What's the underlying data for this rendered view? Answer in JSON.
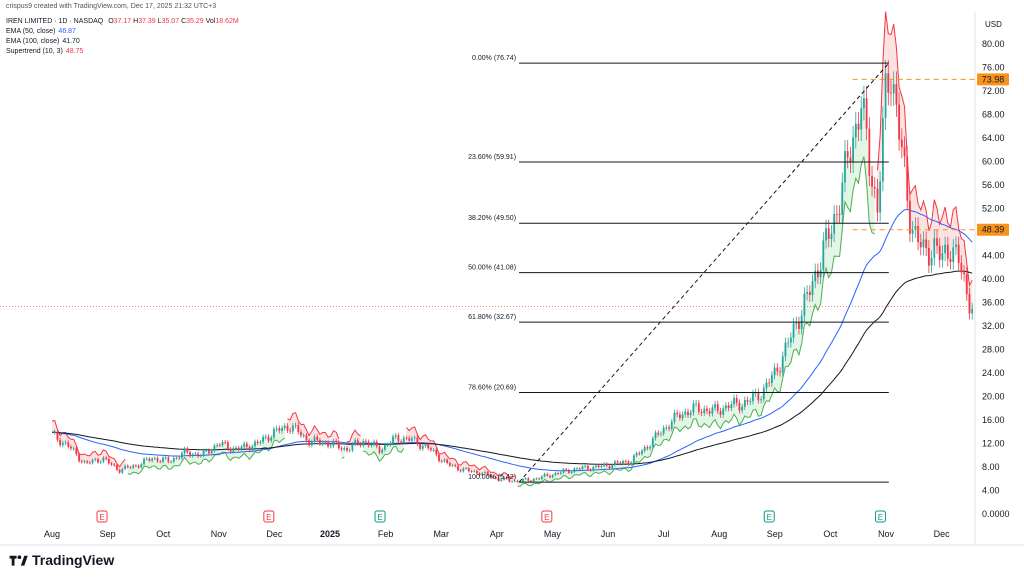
{
  "attribution": "crispus9 created with TradingView.com, Dec 17, 2025 21:32 UTC+3",
  "legend": {
    "symbol": "IREN LIMITED · 1D · NASDAQ",
    "ohlc": [
      {
        "k": "O",
        "v": "37.17"
      },
      {
        "k": "H",
        "v": "37.39"
      },
      {
        "k": "L",
        "v": "35.07"
      },
      {
        "k": "C",
        "v": "35.29"
      }
    ],
    "vol_label": "Vol",
    "vol_value": "18.62M",
    "ema50_label": "EMA (50, close)",
    "ema50_value": "46.87",
    "ema100_label": "EMA (100, close)",
    "ema100_value": "41.70",
    "supertrend_label": "Supertrend (10, 3)",
    "supertrend_value": "48.75"
  },
  "currency": "USD",
  "footer_brand": "TradingView",
  "colors": {
    "up": "#26a69a",
    "down": "#f23645",
    "ema50": "#2962ff",
    "ema100": "#131722",
    "supertrend_up_fill": "#e3f5e6",
    "supertrend_down_fill": "#fde2e2",
    "supertrend_up_line": "#4caf50",
    "supertrend_down_line": "#f23645",
    "price_marker": "#f7931a"
  },
  "chart_data": {
    "type": "candlestick",
    "symbol": "IREN LIMITED",
    "interval": "1D",
    "exchange": "NASDAQ",
    "y_axis_ticks": [
      "80.00",
      "76.00",
      "72.00",
      "68.00",
      "64.00",
      "60.00",
      "56.00",
      "52.00",
      "48.00",
      "44.00",
      "40.00",
      "36.00",
      "32.00",
      "28.00",
      "24.00",
      "20.00",
      "16.00",
      "12.00",
      "8.00",
      "4.00",
      "0.0000"
    ],
    "ylim": [
      0,
      80
    ],
    "x_axis_labels": [
      "Aug",
      "Sep",
      "Oct",
      "Nov",
      "Dec",
      "2025",
      "Feb",
      "Mar",
      "Apr",
      "May",
      "Jun",
      "Jul",
      "Aug",
      "Sep",
      "Oct",
      "Nov",
      "Dec"
    ],
    "earnings_markers": [
      {
        "label": "E",
        "month_index": 1,
        "kind": "red"
      },
      {
        "label": "E",
        "month_index": 4,
        "kind": "red"
      },
      {
        "label": "E",
        "month_index": 6,
        "kind": "green"
      },
      {
        "label": "E",
        "month_index": 9,
        "kind": "red"
      },
      {
        "label": "E",
        "month_index": 13,
        "kind": "green"
      },
      {
        "label": "E",
        "month_index": 15,
        "kind": "green"
      }
    ],
    "price_labels": [
      {
        "value": 73.98,
        "text": "73.98"
      },
      {
        "value": 48.39,
        "text": "48.39"
      }
    ],
    "last_close": 35.29,
    "fibonacci": [
      {
        "ratio": "0.00%",
        "price": 76.74,
        "text": "0.00% (76.74)"
      },
      {
        "ratio": "23.60%",
        "price": 59.91,
        "text": "23.60% (59.91)"
      },
      {
        "ratio": "38.20%",
        "price": 49.5,
        "text": "38.20% (49.50)"
      },
      {
        "ratio": "50.00%",
        "price": 41.08,
        "text": "50.00% (41.08)"
      },
      {
        "ratio": "61.80%",
        "price": 32.67,
        "text": "61.80% (32.67)"
      },
      {
        "ratio": "78.60%",
        "price": 20.69,
        "text": "78.60% (20.69)"
      },
      {
        "ratio": "100.00%",
        "price": 5.42,
        "text": "100.00% (5.42)"
      }
    ],
    "fib_anchor": {
      "low": 5.42,
      "low_month": "Apr",
      "high": 76.74,
      "high_month": "Nov"
    },
    "price_path": [
      {
        "m": 0.0,
        "p": 13.5
      },
      {
        "m": 0.3,
        "p": 11.5
      },
      {
        "m": 0.6,
        "p": 8.5
      },
      {
        "m": 0.9,
        "p": 9.5
      },
      {
        "m": 1.2,
        "p": 7.5
      },
      {
        "m": 1.5,
        "p": 8.2
      },
      {
        "m": 1.8,
        "p": 9.5
      },
      {
        "m": 2.1,
        "p": 9.0
      },
      {
        "m": 2.4,
        "p": 10.5
      },
      {
        "m": 2.7,
        "p": 10.0
      },
      {
        "m": 3.0,
        "p": 12.0
      },
      {
        "m": 3.3,
        "p": 11.0
      },
      {
        "m": 3.7,
        "p": 12.0
      },
      {
        "m": 4.0,
        "p": 14.0
      },
      {
        "m": 4.3,
        "p": 15.0
      },
      {
        "m": 4.6,
        "p": 12.5
      },
      {
        "m": 5.0,
        "p": 12.0
      },
      {
        "m": 5.3,
        "p": 11.0
      },
      {
        "m": 5.6,
        "p": 12.5
      },
      {
        "m": 5.9,
        "p": 11.0
      },
      {
        "m": 6.2,
        "p": 13.0
      },
      {
        "m": 6.5,
        "p": 12.5
      },
      {
        "m": 6.8,
        "p": 11.0
      },
      {
        "m": 7.1,
        "p": 8.5
      },
      {
        "m": 7.4,
        "p": 7.5
      },
      {
        "m": 7.7,
        "p": 7.0
      },
      {
        "m": 8.0,
        "p": 6.0
      },
      {
        "m": 8.3,
        "p": 5.6
      },
      {
        "m": 8.6,
        "p": 5.8
      },
      {
        "m": 8.9,
        "p": 6.5
      },
      {
        "m": 9.2,
        "p": 7.2
      },
      {
        "m": 9.5,
        "p": 7.8
      },
      {
        "m": 9.8,
        "p": 8.0
      },
      {
        "m": 10.1,
        "p": 8.5
      },
      {
        "m": 10.4,
        "p": 9.0
      },
      {
        "m": 10.7,
        "p": 11.5
      },
      {
        "m": 11.0,
        "p": 14.5
      },
      {
        "m": 11.3,
        "p": 17.0
      },
      {
        "m": 11.6,
        "p": 18.0
      },
      {
        "m": 11.9,
        "p": 17.5
      },
      {
        "m": 12.2,
        "p": 18.5
      },
      {
        "m": 12.5,
        "p": 19.0
      },
      {
        "m": 12.8,
        "p": 21.0
      },
      {
        "m": 13.0,
        "p": 24.0
      },
      {
        "m": 13.2,
        "p": 28.0
      },
      {
        "m": 13.4,
        "p": 33.0
      },
      {
        "m": 13.6,
        "p": 37.0
      },
      {
        "m": 13.8,
        "p": 43.0
      },
      {
        "m": 14.0,
        "p": 48.0
      },
      {
        "m": 14.2,
        "p": 55.0
      },
      {
        "m": 14.4,
        "p": 64.0
      },
      {
        "m": 14.55,
        "p": 70.0
      },
      {
        "m": 14.7,
        "p": 60.0
      },
      {
        "m": 14.85,
        "p": 52.0
      },
      {
        "m": 15.0,
        "p": 72.0
      },
      {
        "m": 15.1,
        "p": 76.0
      },
      {
        "m": 15.25,
        "p": 64.0
      },
      {
        "m": 15.4,
        "p": 52.0
      },
      {
        "m": 15.55,
        "p": 47.0
      },
      {
        "m": 15.7,
        "p": 44.0
      },
      {
        "m": 15.85,
        "p": 46.0
      },
      {
        "m": 16.0,
        "p": 43.0
      },
      {
        "m": 16.15,
        "p": 46.0
      },
      {
        "m": 16.3,
        "p": 43.0
      },
      {
        "m": 16.45,
        "p": 38.0
      },
      {
        "m": 16.55,
        "p": 35.3
      }
    ]
  }
}
